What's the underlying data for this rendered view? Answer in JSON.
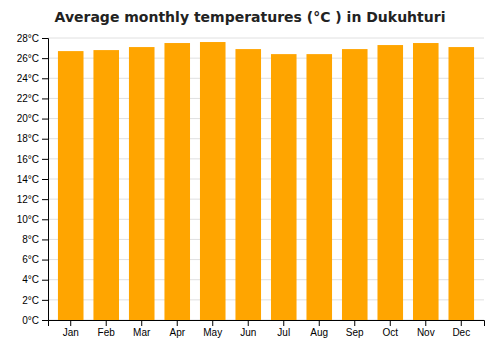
{
  "chart_data": {
    "type": "bar",
    "title": "Average monthly temperatures (°C ) in Dukuhturi",
    "categories": [
      "Jan",
      "Feb",
      "Mar",
      "Apr",
      "May",
      "Jun",
      "Jul",
      "Aug",
      "Sep",
      "Oct",
      "Nov",
      "Dec"
    ],
    "values": [
      26.7,
      26.8,
      27.1,
      27.5,
      27.6,
      26.9,
      26.4,
      26.4,
      26.9,
      27.3,
      27.5,
      27.1
    ],
    "color": "#FFA500",
    "ylim": [
      0,
      28
    ],
    "yticks": [
      {
        "value": 0,
        "label": "0°C"
      },
      {
        "value": 2,
        "label": "2°C"
      },
      {
        "value": 4,
        "label": "4°C"
      },
      {
        "value": 6,
        "label": "6°C"
      },
      {
        "value": 8,
        "label": "8°C"
      },
      {
        "value": 10,
        "label": "10°C"
      },
      {
        "value": 12,
        "label": "12°C"
      },
      {
        "value": 14,
        "label": "14°C"
      },
      {
        "value": 16,
        "label": "16°C"
      },
      {
        "value": 18,
        "label": "18°C"
      },
      {
        "value": 20,
        "label": "20°C"
      },
      {
        "value": 22,
        "label": "22°C"
      },
      {
        "value": 24,
        "label": "24°C"
      },
      {
        "value": 26,
        "label": "26°C"
      },
      {
        "value": 28,
        "label": "28°C"
      }
    ],
    "grid": true
  }
}
